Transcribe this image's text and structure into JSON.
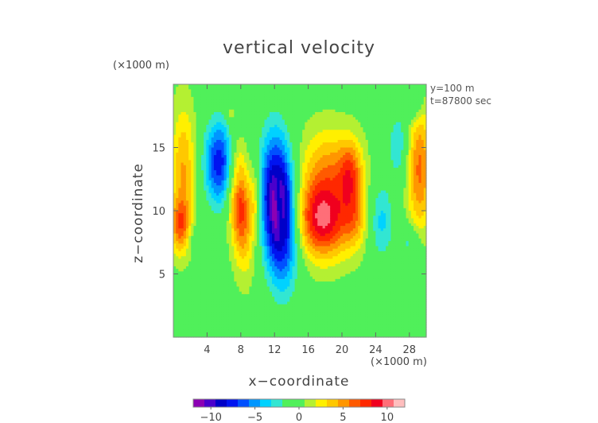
{
  "chart_data": {
    "type": "heatmap",
    "title": "vertical velocity",
    "xlabel": "x−coordinate",
    "ylabel": "z−coordinate",
    "x_unit": "(×1000 m)",
    "y_unit": "(×1000 m)",
    "annotations": [
      "y=100 m",
      "t=87800 sec"
    ],
    "xlim": [
      0,
      30
    ],
    "ylim": [
      0,
      20
    ],
    "x_ticks": [
      4,
      8,
      12,
      16,
      20,
      24,
      28
    ],
    "x_tick_labels": [
      "4",
      "8",
      "12",
      "16",
      "20",
      "24",
      "28"
    ],
    "y_ticks": [
      5,
      10,
      15
    ],
    "y_tick_labels": [
      "5",
      "10",
      "15"
    ],
    "colorbar": {
      "range": [
        -12,
        12
      ],
      "ticks": [
        -10,
        -5,
        0,
        5,
        10
      ],
      "tick_labels": [
        "−10",
        "−5",
        "0",
        "5",
        "10"
      ],
      "colors": [
        "#8c00b4",
        "#4a00cc",
        "#0000c8",
        "#0014f0",
        "#0050ff",
        "#0096ff",
        "#00d2ff",
        "#32e6d2",
        "#50f05a",
        "#50f05a",
        "#b4f032",
        "#fff000",
        "#ffc800",
        "#ff9600",
        "#ff5a00",
        "#ff2800",
        "#f0001e",
        "#ff6e78",
        "#ffbebe"
      ]
    },
    "features": [
      {
        "x": 12.5,
        "z": 10.2,
        "amp": -13,
        "sx": 1.4,
        "sz": 3.9,
        "rot": 0.07
      },
      {
        "x": 12.6,
        "z": 10.2,
        "amp": 3.5,
        "sx": 0.3,
        "sz": 1.6,
        "rot": 0.1
      },
      {
        "x": 5.5,
        "z": 13.8,
        "amp": -8,
        "sx": 1.3,
        "sz": 2.4,
        "rot": 0
      },
      {
        "x": 7.9,
        "z": 10.5,
        "amp": 8,
        "sx": 0.9,
        "sz": 3.2,
        "rot": 0.1
      },
      {
        "x": 9.7,
        "z": 10.8,
        "amp": 3,
        "sx": 0.5,
        "sz": 2,
        "rot": 0
      },
      {
        "x": 17.7,
        "z": 9.2,
        "amp": 9,
        "sx": 2.2,
        "sz": 2.1,
        "rot": -0.3
      },
      {
        "x": 18.3,
        "z": 13.2,
        "amp": 4.5,
        "sx": 2.3,
        "sz": 2.4,
        "rot": 0
      },
      {
        "x": 21,
        "z": 13,
        "amp": 5,
        "sx": 1,
        "sz": 1.8,
        "rot": 0
      },
      {
        "x": 21.5,
        "z": 9.5,
        "amp": 3.5,
        "sx": 1,
        "sz": 1.8,
        "rot": 0
      },
      {
        "x": 1.2,
        "z": 13.3,
        "amp": 4.5,
        "sx": 1,
        "sz": 3.5,
        "rot": 0
      },
      {
        "x": 0.8,
        "z": 8.8,
        "amp": 5.5,
        "sx": 0.8,
        "sz": 1.5,
        "rot": 0
      },
      {
        "x": 29.2,
        "z": 13.3,
        "amp": 6,
        "sx": 1,
        "sz": 3.5,
        "rot": 0
      },
      {
        "x": 26.7,
        "z": 15.2,
        "amp": -3,
        "sx": 0.9,
        "sz": 2,
        "rot": 0
      },
      {
        "x": 24.7,
        "z": 9.2,
        "amp": -3.5,
        "sx": 1,
        "sz": 2.2,
        "rot": 0
      },
      {
        "x": 28,
        "z": 7.5,
        "amp": -2.5,
        "sx": 1,
        "sz": 1,
        "rot": 0
      },
      {
        "x": 28.5,
        "z": 18.5,
        "amp": -3,
        "sx": 0.8,
        "sz": 1,
        "rot": 0
      },
      {
        "x": 3,
        "z": 7.6,
        "amp": -2,
        "sx": 0.8,
        "sz": 0.8,
        "rot": 0
      },
      {
        "x": 6.7,
        "z": 17.6,
        "amp": 2.2,
        "sx": 0.4,
        "sz": 0.4,
        "rot": 0
      },
      {
        "x": 7.5,
        "z": 12.3,
        "amp": -1.5,
        "sx": 0.5,
        "sz": 0.6,
        "rot": 0
      }
    ]
  }
}
